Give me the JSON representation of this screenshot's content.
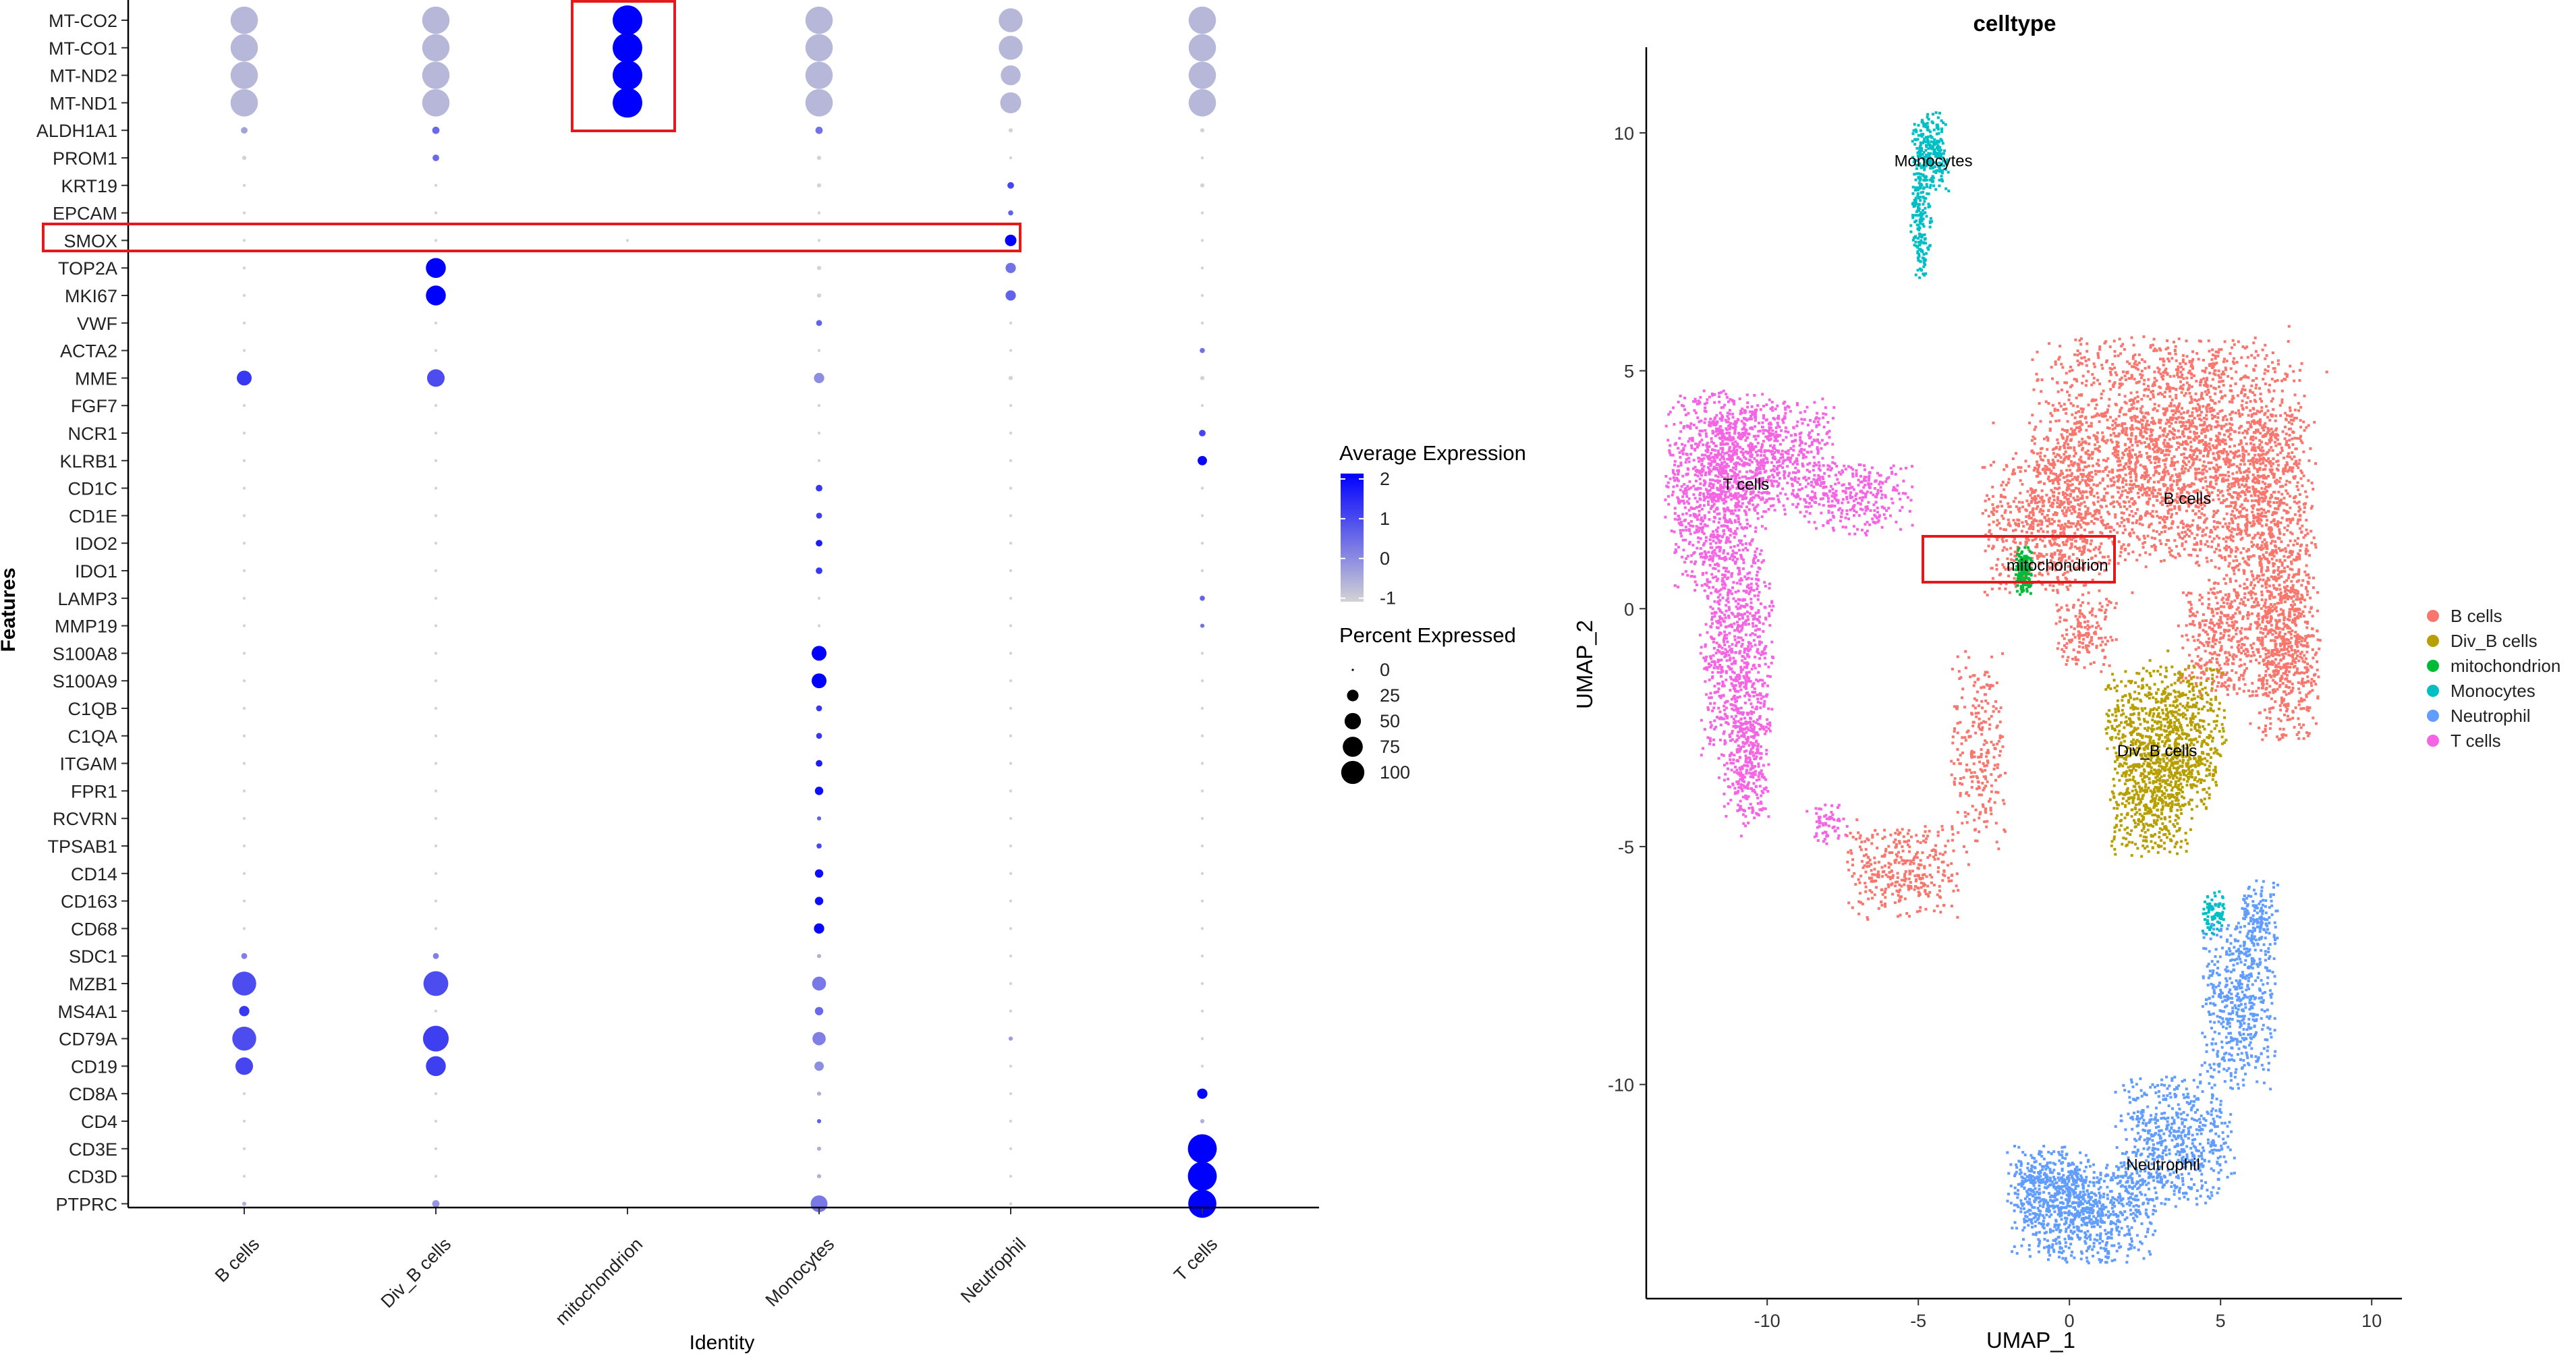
{
  "dotplot_panel": {
    "x_axis_title": "Identity",
    "y_axis_title": "Features",
    "legend_color_title": "Average Expression",
    "legend_color_ticks": [
      "2",
      "1",
      "0",
      "-1"
    ],
    "legend_size_title": "Percent Expressed",
    "legend_size_ticks": [
      "0",
      "25",
      "50",
      "75",
      "100"
    ]
  },
  "umap_panel": {
    "title": "celltype",
    "x_axis_title": "UMAP_1",
    "y_axis_title": "UMAP_2",
    "legend_items": [
      {
        "label": "B cells",
        "color": "#F8766D"
      },
      {
        "label": "Div_B cells",
        "color": "#B79F00"
      },
      {
        "label": "mitochondrion",
        "color": "#00BA38"
      },
      {
        "label": "Monocytes",
        "color": "#00BFC4"
      },
      {
        "label": "Neutrophil",
        "color": "#619CFF"
      },
      {
        "label": "T cells",
        "color": "#F564E3"
      }
    ],
    "cluster_labels": [
      {
        "text": "Monocytes",
        "x": -4.5,
        "y": 9.3
      },
      {
        "text": "T cells",
        "x": -10.7,
        "y": 2.5
      },
      {
        "text": "B cells",
        "x": 3.9,
        "y": 2.2
      },
      {
        "text": "mitochondrion",
        "x": -0.4,
        "y": 0.8
      },
      {
        "text": "Div_B cells",
        "x": 2.9,
        "y": -3.1
      },
      {
        "text": "Neutrophil",
        "x": 3.1,
        "y": -11.8
      }
    ]
  },
  "chart_data": [
    {
      "type": "scatter",
      "subtype": "dotplot",
      "xlabel": "Identity",
      "ylabel": "Features",
      "categories": [
        "B cells",
        "Div_B cells",
        "mitochondrion",
        "Monocytes",
        "Neutrophil",
        "T cells"
      ],
      "features": [
        "MT-CO2",
        "MT-CO1",
        "MT-ND2",
        "MT-ND1",
        "ALDH1A1",
        "PROM1",
        "KRT19",
        "EPCAM",
        "SMOX",
        "TOP2A",
        "MKI67",
        "VWF",
        "ACTA2",
        "MME",
        "FGF7",
        "NCR1",
        "KLRB1",
        "CD1C",
        "CD1E",
        "IDO2",
        "IDO1",
        "LAMP3",
        "MMP19",
        "S100A8",
        "S100A9",
        "C1QB",
        "C1QA",
        "ITGAM",
        "FPR1",
        "RCVRN",
        "TPSAB1",
        "CD14",
        "CD163",
        "CD68",
        "SDC1",
        "MZB1",
        "MS4A1",
        "CD79A",
        "CD19",
        "CD8A",
        "CD4",
        "CD3E",
        "CD3D",
        "PTPRC"
      ],
      "percent_expressed": [
        [
          85,
          85,
          100,
          85,
          65,
          85
        ],
        [
          85,
          85,
          100,
          85,
          65,
          85
        ],
        [
          85,
          85,
          100,
          85,
          45,
          85
        ],
        [
          85,
          85,
          100,
          85,
          50,
          85
        ],
        [
          5,
          6,
          0,
          6,
          2,
          2
        ],
        [
          2,
          5,
          0,
          2,
          1,
          1
        ],
        [
          1,
          1,
          0,
          2,
          5,
          2
        ],
        [
          1,
          1,
          0,
          1,
          3,
          1
        ],
        [
          1,
          1,
          1,
          1,
          15,
          1
        ],
        [
          1,
          45,
          0,
          2,
          12,
          1
        ],
        [
          1,
          45,
          0,
          2,
          12,
          1
        ],
        [
          1,
          1,
          0,
          4,
          1,
          1
        ],
        [
          1,
          1,
          0,
          1,
          1,
          3
        ],
        [
          25,
          35,
          0,
          12,
          2,
          2
        ],
        [
          1,
          1,
          0,
          1,
          1,
          1
        ],
        [
          1,
          1,
          0,
          1,
          1,
          5
        ],
        [
          1,
          1,
          0,
          1,
          1,
          10
        ],
        [
          1,
          1,
          0,
          5,
          1,
          1
        ],
        [
          1,
          1,
          0,
          4,
          1,
          1
        ],
        [
          1,
          1,
          0,
          5,
          1,
          1
        ],
        [
          1,
          1,
          0,
          5,
          1,
          1
        ],
        [
          1,
          1,
          0,
          1,
          1,
          3
        ],
        [
          1,
          1,
          0,
          1,
          1,
          2
        ],
        [
          1,
          1,
          0,
          25,
          1,
          1
        ],
        [
          1,
          1,
          0,
          25,
          1,
          1
        ],
        [
          1,
          1,
          0,
          4,
          1,
          1
        ],
        [
          1,
          1,
          0,
          4,
          1,
          1
        ],
        [
          1,
          1,
          0,
          5,
          1,
          1
        ],
        [
          1,
          1,
          0,
          8,
          1,
          1
        ],
        [
          1,
          1,
          0,
          2,
          1,
          1
        ],
        [
          1,
          1,
          0,
          3,
          1,
          1
        ],
        [
          1,
          1,
          0,
          8,
          1,
          1
        ],
        [
          1,
          1,
          0,
          8,
          1,
          1
        ],
        [
          1,
          1,
          0,
          12,
          1,
          1
        ],
        [
          4,
          4,
          0,
          2,
          1,
          1
        ],
        [
          65,
          70,
          0,
          22,
          1,
          1
        ],
        [
          12,
          1,
          0,
          8,
          1,
          1
        ],
        [
          65,
          75,
          0,
          20,
          2,
          1
        ],
        [
          35,
          45,
          0,
          10,
          1,
          1
        ],
        [
          1,
          1,
          0,
          2,
          1,
          12
        ],
        [
          1,
          1,
          0,
          2,
          1,
          2
        ],
        [
          1,
          1,
          0,
          2,
          1,
          95
        ],
        [
          1,
          1,
          0,
          2,
          1,
          95
        ],
        [
          2,
          6,
          0,
          32,
          1,
          90
        ]
      ],
      "average_expression": [
        [
          -0.6,
          -0.6,
          2,
          -0.6,
          -0.6,
          -0.6
        ],
        [
          -0.6,
          -0.6,
          2,
          -0.6,
          -0.6,
          -0.6
        ],
        [
          -0.6,
          -0.6,
          2,
          -0.6,
          -0.6,
          -0.6
        ],
        [
          -0.6,
          -0.6,
          2,
          -0.6,
          -0.6,
          -0.6
        ],
        [
          -0.3,
          0.5,
          -1,
          0.4,
          -1,
          -1
        ],
        [
          -1,
          0.5,
          -1,
          -1,
          -1,
          -1
        ],
        [
          -1,
          -1,
          -1,
          -1,
          1,
          -1
        ],
        [
          -1,
          -1,
          -1,
          -1,
          0.6,
          -1
        ],
        [
          -1,
          -1,
          -1,
          -1,
          2,
          -1
        ],
        [
          -1,
          2,
          -1,
          -1,
          0.4,
          -1
        ],
        [
          -1,
          2,
          -1,
          -1,
          0.6,
          -1
        ],
        [
          -1,
          -1,
          -1,
          0.6,
          -1,
          -1
        ],
        [
          -1,
          -1,
          -1,
          -1,
          -1,
          0.4
        ],
        [
          1.2,
          0.9,
          -1,
          0,
          -1,
          -1
        ],
        [
          -1,
          -1,
          -1,
          -1,
          -1,
          -1
        ],
        [
          -1,
          -1,
          -1,
          -1,
          -1,
          1
        ],
        [
          -1,
          -1,
          -1,
          -1,
          -1,
          1.9
        ],
        [
          -1,
          -1,
          -1,
          1.2,
          -1,
          -1
        ],
        [
          -1,
          -1,
          -1,
          1.1,
          -1,
          -1
        ],
        [
          -1,
          -1,
          -1,
          1.6,
          -1,
          -1
        ],
        [
          -1,
          -1,
          -1,
          1.2,
          -1,
          -1
        ],
        [
          -1,
          -1,
          -1,
          -1,
          -1,
          0.6
        ],
        [
          -1,
          -1,
          -1,
          -1,
          -1,
          0.4
        ],
        [
          -1,
          -1,
          -1,
          2,
          -1,
          -1
        ],
        [
          -1,
          -1,
          -1,
          2,
          -1,
          -1
        ],
        [
          -1,
          -1,
          -1,
          1.2,
          -1,
          -1
        ],
        [
          -1,
          -1,
          -1,
          1.2,
          -1,
          -1
        ],
        [
          -1,
          -1,
          -1,
          1.6,
          -1,
          -1
        ],
        [
          -1,
          -1,
          -1,
          1.8,
          -1,
          -1
        ],
        [
          -1,
          -1,
          -1,
          0.6,
          -1,
          -1
        ],
        [
          -1,
          -1,
          -1,
          1,
          -1,
          -1
        ],
        [
          -1,
          -1,
          -1,
          1.8,
          -1,
          -1
        ],
        [
          -1,
          -1,
          -1,
          1.8,
          -1,
          -1
        ],
        [
          -1,
          -1,
          -1,
          1.9,
          -1,
          -1
        ],
        [
          0.2,
          0.2,
          -1,
          -0.5,
          -1,
          -1
        ],
        [
          0.9,
          0.9,
          -1,
          0.3,
          -1,
          -1
        ],
        [
          1.2,
          -1,
          -1,
          0.5,
          -1,
          -1
        ],
        [
          0.9,
          1.1,
          -1,
          0.2,
          -0.2,
          -1
        ],
        [
          1.0,
          1.1,
          -1,
          0,
          -1,
          -1
        ],
        [
          -1,
          -1,
          -1,
          -0.5,
          -1,
          1.9
        ],
        [
          -1,
          -1,
          -1,
          0.6,
          -1,
          -0.5
        ],
        [
          -1,
          -1,
          -1,
          -0.5,
          -1,
          2
        ],
        [
          -1,
          -1,
          -1,
          -0.5,
          -1,
          2
        ],
        [
          -0.5,
          -0.1,
          -1,
          0.3,
          -1,
          2
        ]
      ],
      "color_scale": {
        "low": "#D3D3D3",
        "high": "#0000FF",
        "range": [
          -1,
          2
        ]
      },
      "size_scale": {
        "range": [
          0,
          100
        ]
      },
      "annotations": [
        {
          "kind": "highlight-box",
          "target": "mitochondrion: MT-CO2..MT-ND1",
          "color": "#E31A1C"
        },
        {
          "kind": "highlight-box",
          "target": "row SMOX",
          "color": "#E31A1C"
        }
      ],
      "grid": false
    },
    {
      "type": "scatter",
      "subtype": "umap",
      "title": "celltype",
      "xlabel": "UMAP_1",
      "ylabel": "UMAP_2",
      "xlim": [
        -14,
        11
      ],
      "ylim": [
        -14.5,
        11.8
      ],
      "xticks": [
        -10,
        -5,
        0,
        5,
        10
      ],
      "yticks": [
        10,
        5,
        0,
        -5,
        -10
      ],
      "legend_position": "right",
      "grid": false,
      "clusters": [
        {
          "name": "B cells",
          "color": "#F8766D",
          "blobs": [
            [
              3.3,
              3.3,
              3.0,
              1.6,
              2600
            ],
            [
              6.5,
              1.2,
              1.1,
              2.0,
              900
            ],
            [
              7.2,
              -1.0,
              0.7,
              1.2,
              500
            ],
            [
              -0.8,
              1.8,
              1.4,
              1.0,
              600
            ],
            [
              -5.5,
              -5.5,
              1.2,
              0.7,
              350
            ],
            [
              -3.0,
              -3.0,
              0.6,
              1.4,
              250
            ],
            [
              4.8,
              -0.6,
              0.8,
              0.8,
              300
            ],
            [
              0.5,
              -0.5,
              0.7,
              0.5,
              150
            ]
          ]
        },
        {
          "name": "Div_B cells",
          "color": "#B79F00",
          "blobs": [
            [
              3.6,
              -2.7,
              1.0,
              1.0,
              700
            ],
            [
              2.7,
              -4.0,
              0.9,
              0.8,
              500
            ],
            [
              1.8,
              -2.2,
              0.4,
              0.6,
              120
            ]
          ]
        },
        {
          "name": "mitochondrion",
          "color": "#00BA38",
          "blobs": [
            [
              -1.5,
              0.8,
              0.18,
              0.32,
              160
            ]
          ]
        },
        {
          "name": "Monocytes",
          "color": "#00BFC4",
          "blobs": [
            [
              -4.6,
              9.6,
              0.4,
              0.55,
              260
            ],
            [
              -4.9,
              8.3,
              0.25,
              0.55,
              120
            ],
            [
              -4.9,
              7.4,
              0.12,
              0.3,
              40
            ],
            [
              4.8,
              -6.4,
              0.25,
              0.3,
              80
            ]
          ]
        },
        {
          "name": "Neutrophil",
          "color": "#619CFF",
          "blobs": [
            [
              0.5,
              -12.7,
              1.6,
              0.7,
              800
            ],
            [
              3.5,
              -11.2,
              1.3,
              0.9,
              600
            ],
            [
              5.6,
              -8.3,
              0.8,
              1.2,
              500
            ],
            [
              6.3,
              -6.6,
              0.4,
              0.6,
              150
            ],
            [
              -0.7,
              -12.0,
              0.9,
              0.5,
              250
            ]
          ]
        },
        {
          "name": "T cells",
          "color": "#F564E3",
          "blobs": [
            [
              -11.7,
              2.5,
              1.1,
              1.4,
              900
            ],
            [
              -10.0,
              3.2,
              1.5,
              0.8,
              700
            ],
            [
              -11.0,
              -1.0,
              0.8,
              1.5,
              700
            ],
            [
              -10.7,
              -3.3,
              0.5,
              0.9,
              300
            ],
            [
              -7.0,
              2.3,
              1.2,
              0.5,
              300
            ],
            [
              -8.0,
              -4.5,
              0.4,
              0.3,
              60
            ]
          ]
        }
      ]
    }
  ]
}
